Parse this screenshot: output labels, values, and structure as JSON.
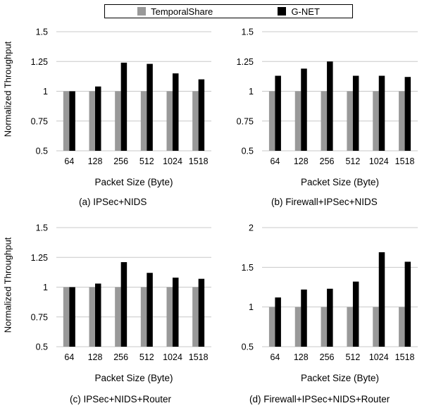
{
  "legend": {
    "temporal_label": "TemporalShare",
    "gnet_label": "G-NET"
  },
  "colors": {
    "temporal": "#999999",
    "gnet": "#000000",
    "grid": "#c8c8c8"
  },
  "chart_data": [
    {
      "type": "bar",
      "caption": "(a) IPSec+NIDS",
      "xlabel": "Packet Size (Byte)",
      "ylabel": "Normalized Throughput",
      "categories": [
        "64",
        "128",
        "256",
        "512",
        "1024",
        "1518"
      ],
      "ylim": [
        0.5,
        1.5
      ],
      "yticks": [
        "0.5",
        "0.75",
        "1",
        "1.25",
        "1.5"
      ],
      "grid": true,
      "series": [
        {
          "name": "TemporalShare",
          "values": [
            1.0,
            1.0,
            1.0,
            1.0,
            1.0,
            1.0
          ]
        },
        {
          "name": "G-NET",
          "values": [
            1.0,
            1.04,
            1.24,
            1.23,
            1.15,
            1.1
          ]
        }
      ]
    },
    {
      "type": "bar",
      "caption": "(b) Firewall+IPSec+NIDS",
      "xlabel": "Packet Size (Byte)",
      "ylabel": "",
      "categories": [
        "64",
        "128",
        "256",
        "512",
        "1024",
        "1518"
      ],
      "ylim": [
        0.5,
        1.5
      ],
      "yticks": [
        "0.5",
        "0.75",
        "1",
        "1.25",
        "1.5"
      ],
      "grid": true,
      "series": [
        {
          "name": "TemporalShare",
          "values": [
            1.0,
            1.0,
            1.0,
            1.0,
            1.0,
            1.0
          ]
        },
        {
          "name": "G-NET",
          "values": [
            1.13,
            1.19,
            1.25,
            1.13,
            1.13,
            1.12
          ]
        }
      ]
    },
    {
      "type": "bar",
      "caption": "(c) IPSec+NIDS+Router",
      "xlabel": "Packet Size (Byte)",
      "ylabel": "Normalized Throughput",
      "categories": [
        "64",
        "128",
        "256",
        "512",
        "1024",
        "1518"
      ],
      "ylim": [
        0.5,
        1.5
      ],
      "yticks": [
        "0.5",
        "0.75",
        "1",
        "1.25",
        "1.5"
      ],
      "grid": true,
      "series": [
        {
          "name": "TemporalShare",
          "values": [
            1.0,
            1.0,
            1.0,
            1.0,
            1.0,
            1.0
          ]
        },
        {
          "name": "G-NET",
          "values": [
            1.0,
            1.03,
            1.21,
            1.12,
            1.08,
            1.07
          ]
        }
      ]
    },
    {
      "type": "bar",
      "caption": "(d) Firewall+IPSec+NIDS+Router",
      "xlabel": "Packet Size (Byte)",
      "ylabel": "",
      "categories": [
        "64",
        "128",
        "256",
        "512",
        "1024",
        "1518"
      ],
      "ylim": [
        0.5,
        2.0
      ],
      "yticks": [
        "0.5",
        "1",
        "1.5",
        "2"
      ],
      "grid": true,
      "series": [
        {
          "name": "TemporalShare",
          "values": [
            1.0,
            1.0,
            1.0,
            1.0,
            1.0,
            1.0
          ]
        },
        {
          "name": "G-NET",
          "values": [
            1.12,
            1.22,
            1.23,
            1.32,
            1.69,
            1.57
          ]
        }
      ]
    }
  ]
}
